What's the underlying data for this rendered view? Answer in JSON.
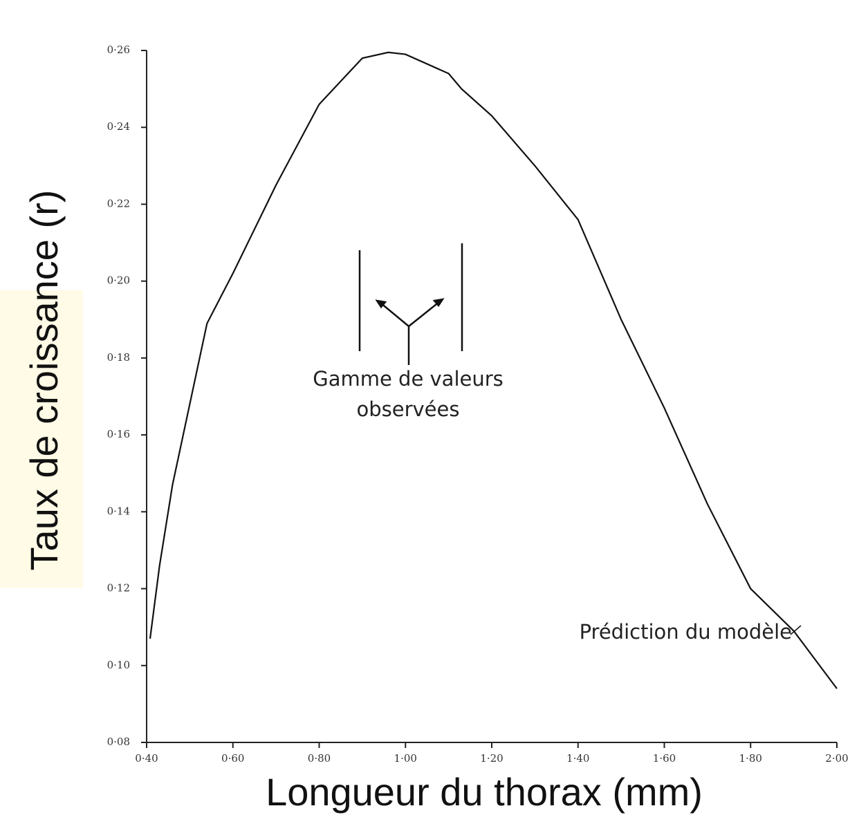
{
  "chart_data": {
    "type": "line",
    "x_label": "Longueur du thorax (mm)",
    "y_label": "Taux de croissance (r)",
    "annotations": [
      "Gamme de valeurs",
      "observées",
      "Prédiction du modèle"
    ],
    "x": [
      0.408,
      0.43,
      0.46,
      0.54,
      0.6,
      0.7,
      0.8,
      0.9,
      0.96,
      1.0,
      1.1,
      1.13,
      1.2,
      1.3,
      1.4,
      1.5,
      1.6,
      1.7,
      1.8,
      1.9,
      2.0
    ],
    "values": [
      0.107,
      0.126,
      0.147,
      0.189,
      0.202,
      0.225,
      0.246,
      0.258,
      0.2595,
      0.259,
      0.254,
      0.25,
      0.243,
      0.23,
      0.216,
      0.19,
      0.167,
      0.142,
      0.12,
      0.109,
      0.094
    ],
    "color": "#111111",
    "xlim": [
      0.4,
      2.0
    ],
    "ylim": [
      0.08,
      0.26
    ],
    "xticks": [
      {
        "value": 0.4,
        "label": "0·40"
      },
      {
        "value": 0.6,
        "label": "0·60"
      },
      {
        "value": 0.8,
        "label": "0·80"
      },
      {
        "value": 1.0,
        "label": "1·00"
      },
      {
        "value": 1.2,
        "label": "1·20"
      },
      {
        "value": 1.4,
        "label": "1·40"
      },
      {
        "value": 1.6,
        "label": "1·60"
      },
      {
        "value": 1.8,
        "label": "1·80"
      },
      {
        "value": 2.0,
        "label": "2·00"
      }
    ],
    "yticks": [
      {
        "value": 0.08,
        "label": "0·08"
      },
      {
        "value": 0.1,
        "label": "0·10"
      },
      {
        "value": 0.12,
        "label": "0·12"
      },
      {
        "value": 0.14,
        "label": "0·14"
      },
      {
        "value": 0.16,
        "label": "0·16"
      },
      {
        "value": 0.18,
        "label": "0·18"
      },
      {
        "value": 0.2,
        "label": "0·20"
      },
      {
        "value": 0.22,
        "label": "0·22"
      },
      {
        "value": 0.24,
        "label": "0·24"
      },
      {
        "value": 0.26,
        "label": "0·26"
      }
    ],
    "grid": false
  }
}
